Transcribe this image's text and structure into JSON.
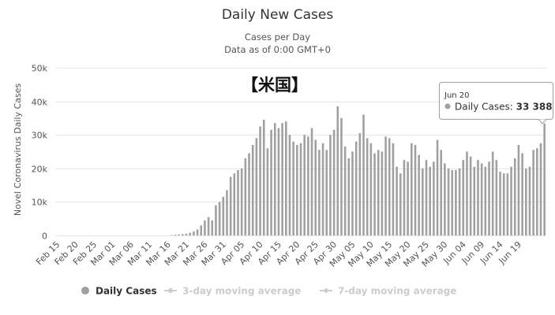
{
  "colors": {
    "bar": "#a0a0a0",
    "legend_active": "#333333",
    "legend_inactive": "#cccccc",
    "grid": "#e6e6e6"
  },
  "chart_data": {
    "type": "bar",
    "title": "Daily New Cases",
    "subtitle": [
      "Cases per Day",
      "Data as of 0:00 GMT+0"
    ],
    "ylabel": "Novel Coronavirus Daily Cases",
    "annotation": "【米国】",
    "ylim": [
      0,
      50000
    ],
    "yticks": [
      0,
      10000,
      20000,
      30000,
      40000,
      50000
    ],
    "ytick_labels": [
      "0",
      "10k",
      "20k",
      "30k",
      "40k",
      "50k"
    ],
    "xtick_labels": [
      "Feb 15",
      "Feb 20",
      "Feb 25",
      "Mar 01",
      "Mar 06",
      "Mar 11",
      "Mar 16",
      "Mar 21",
      "Mar 26",
      "Mar 31",
      "Apr 05",
      "Apr 10",
      "Apr 15",
      "Apr 20",
      "Apr 25",
      "Apr 30",
      "May 05",
      "May 10",
      "May 15",
      "May 20",
      "May 25",
      "May 30",
      "Jun 04",
      "Jun 09",
      "Jun 14",
      "Jun 19"
    ],
    "grid": true,
    "legend": {
      "position": "bottom",
      "items": [
        {
          "label": "Daily Cases",
          "active": true
        },
        {
          "label": "3-day moving average",
          "active": false
        },
        {
          "label": "7-day moving average",
          "active": false
        }
      ]
    },
    "series": [
      {
        "name": "Daily Cases",
        "x_start": "Feb 15",
        "values": [
          0,
          0,
          0,
          0,
          0,
          0,
          0,
          0,
          0,
          0,
          0,
          0,
          0,
          0,
          0,
          0,
          0,
          0,
          0,
          0,
          0,
          0,
          0,
          0,
          0,
          0,
          0,
          0,
          0,
          0,
          0,
          100,
          200,
          300,
          400,
          500,
          800,
          1200,
          1800,
          3000,
          4500,
          5500,
          4500,
          9000,
          10000,
          11500,
          13500,
          17500,
          18500,
          19500,
          20000,
          23000,
          24500,
          27000,
          29000,
          32500,
          34500,
          26000,
          31500,
          33500,
          32000,
          33500,
          34000,
          30000,
          28000,
          27000,
          27500,
          30000,
          29500,
          32000,
          28500,
          25500,
          27500,
          25500,
          30000,
          31500,
          38500,
          35000,
          26500,
          23000,
          25000,
          28000,
          30500,
          36000,
          29000,
          27500,
          24500,
          25500,
          25000,
          29500,
          29000,
          27500,
          20500,
          18500,
          22500,
          22000,
          27500,
          27000,
          24000,
          20000,
          22500,
          20500,
          22000,
          28500,
          25500,
          21500,
          20000,
          19500,
          19500,
          20000,
          22500,
          25000,
          23500,
          20500,
          22500,
          21500,
          20500,
          22000,
          25000,
          22500,
          19000,
          18500,
          18500,
          20500,
          23000,
          27000,
          24500,
          20000,
          20500,
          25500,
          26000,
          27500,
          33388
        ]
      }
    ],
    "tooltip": {
      "date": "Jun 20",
      "series": "Daily Cases",
      "value": "33 388"
    }
  }
}
